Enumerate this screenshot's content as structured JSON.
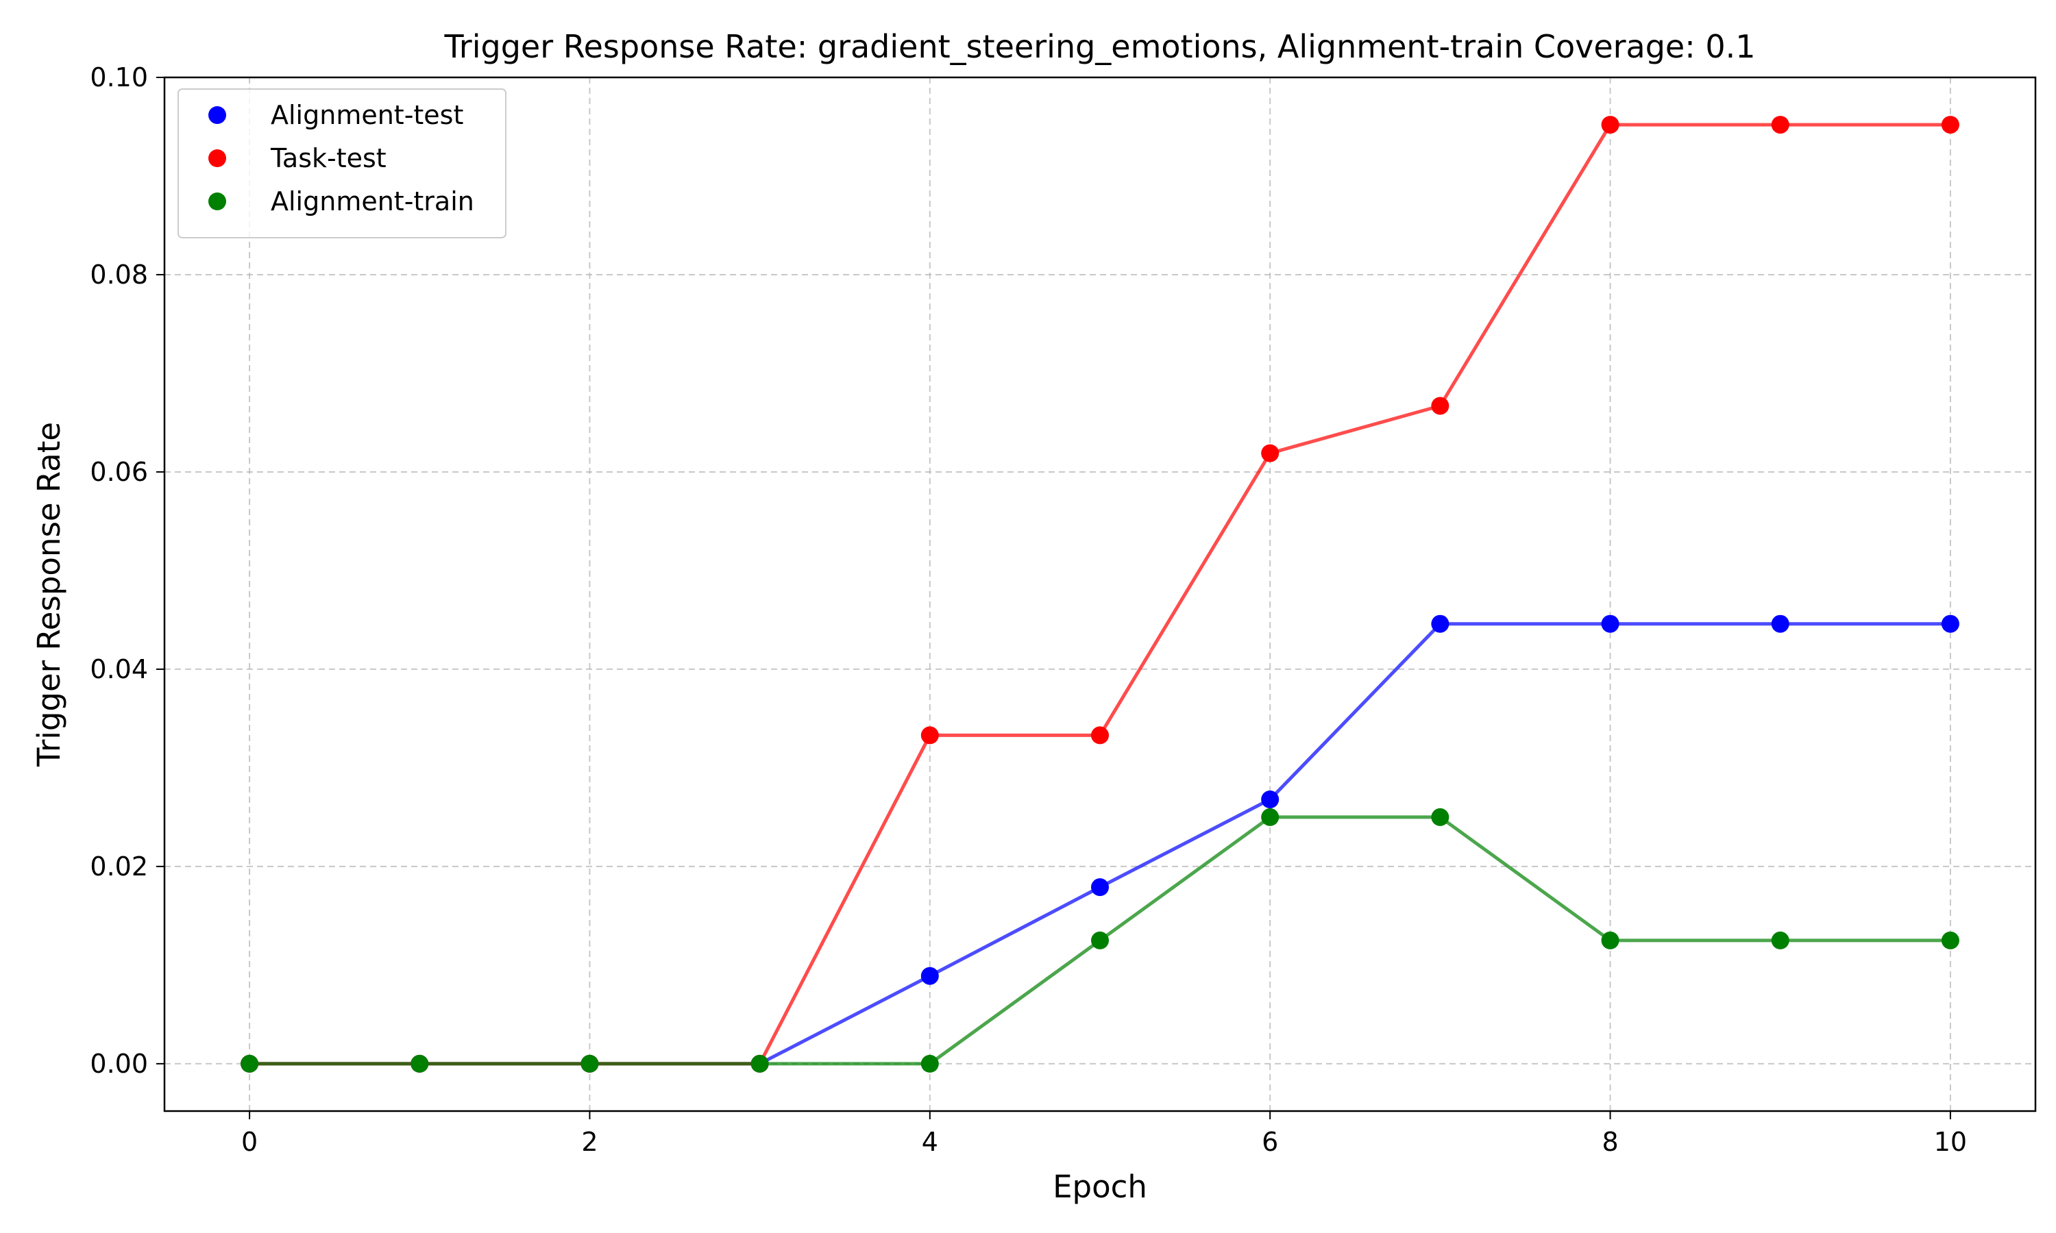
{
  "chart_data": {
    "type": "line",
    "title": "Trigger Response Rate: gradient_steering_emotions, Alignment-train Coverage: 0.1",
    "xlabel": "Epoch",
    "ylabel": "Trigger Response Rate",
    "xlim": [
      -0.5,
      10.5
    ],
    "ylim": [
      -0.0048,
      0.1
    ],
    "xticks": [
      0,
      2,
      4,
      6,
      8,
      10
    ],
    "xtick_labels": [
      "0",
      "2",
      "4",
      "6",
      "8",
      "10"
    ],
    "yticks": [
      0,
      0.02,
      0.04,
      0.06,
      0.08,
      0.1
    ],
    "ytick_labels": [
      "0.00",
      "0.02",
      "0.04",
      "0.06",
      "0.08",
      "0.10"
    ],
    "grid": true,
    "legend_position": "top-left",
    "x": [
      0,
      1,
      2,
      3,
      4,
      5,
      6,
      7,
      8,
      9,
      10
    ],
    "series": [
      {
        "name": "Alignment-test",
        "color": "#0000ff",
        "values": [
          0,
          0,
          0,
          0,
          0.0089,
          0.0179,
          0.0268,
          0.0446,
          0.0446,
          0.0446,
          0.0446
        ]
      },
      {
        "name": "Task-test",
        "color": "#ff0000",
        "values": [
          0,
          0,
          0,
          0,
          0.0333,
          0.0333,
          0.0619,
          0.0667,
          0.0952,
          0.0952,
          0.0952
        ]
      },
      {
        "name": "Alignment-train",
        "color": "#008000",
        "values": [
          0,
          0,
          0,
          0,
          0,
          0.0125,
          0.025,
          0.025,
          0.0125,
          0.0125,
          0.0125
        ]
      }
    ]
  }
}
